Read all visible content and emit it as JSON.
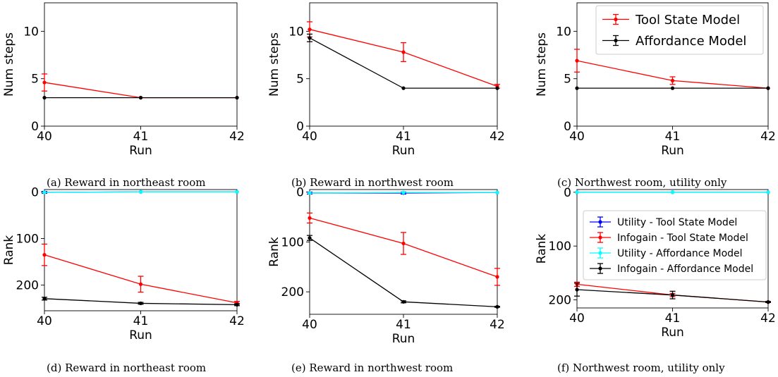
{
  "captions": [
    "(a) Reward in northeast room",
    "(b) Reward in northwest room",
    "(c) Northwest room, utility only",
    "(d) Reward in northeast room",
    "(e) Reward in northwest room",
    "(f) Northwest room, utility only"
  ],
  "colors": {
    "tool_state": "#ff0000",
    "affordance": "#000000",
    "utility_tool_state": "#0000ff",
    "utility_affordance": "#00ffff"
  },
  "chart_data": [
    {
      "type": "line",
      "title": "",
      "xlabel": "Run",
      "ylabel": "Num steps",
      "x": [
        40,
        41,
        42
      ],
      "xlim": [
        40,
        42
      ],
      "ylim": [
        0,
        13
      ],
      "yticks": [
        0,
        5,
        10
      ],
      "series": [
        {
          "color": "#ff0000",
          "values": [
            4.6,
            3.0,
            3.0
          ],
          "errors": [
            0.9,
            0,
            0
          ]
        },
        {
          "color": "#000000",
          "values": [
            3.0,
            3.0,
            3.0
          ],
          "errors": [
            0,
            0,
            0
          ]
        }
      ]
    },
    {
      "type": "line",
      "title": "",
      "xlabel": "Run",
      "ylabel": "Num steps",
      "x": [
        40,
        41,
        42
      ],
      "xlim": [
        40,
        42
      ],
      "ylim": [
        0,
        13
      ],
      "yticks": [
        0,
        5,
        10
      ],
      "series": [
        {
          "color": "#ff0000",
          "values": [
            10.2,
            7.8,
            4.2
          ],
          "errors": [
            0.8,
            1.0,
            0.2
          ]
        },
        {
          "color": "#000000",
          "values": [
            9.3,
            4.0,
            4.0
          ],
          "errors": [
            0.4,
            0,
            0
          ]
        }
      ]
    },
    {
      "type": "line",
      "title": "",
      "xlabel": "Run",
      "ylabel": "Num steps",
      "x": [
        40,
        41,
        42
      ],
      "xlim": [
        40,
        42
      ],
      "ylim": [
        0,
        13
      ],
      "yticks": [
        0,
        5,
        10
      ],
      "legend": "top-right",
      "series": [
        {
          "name": "Tool State Model",
          "color": "#ff0000",
          "values": [
            6.9,
            4.8,
            4.0
          ],
          "errors": [
            1.2,
            0.4,
            0
          ]
        },
        {
          "name": "Affordance Model",
          "color": "#000000",
          "values": [
            4.0,
            4.0,
            4.0
          ],
          "errors": [
            0,
            0,
            0
          ]
        }
      ]
    },
    {
      "type": "line",
      "title": "",
      "xlabel": "Run",
      "ylabel": "Rank",
      "x": [
        40,
        41,
        42
      ],
      "xlim": [
        40,
        42
      ],
      "ylim": [
        255,
        -5
      ],
      "yticks": [
        0,
        100,
        200
      ],
      "series": [
        {
          "color": "#0000ff",
          "values": [
            1,
            0,
            0
          ],
          "errors": [
            2,
            0,
            0
          ]
        },
        {
          "color": "#ff0000",
          "values": [
            135,
            198,
            238
          ],
          "errors": [
            23,
            17,
            3
          ]
        },
        {
          "color": "#00ffff",
          "values": [
            1,
            0,
            0
          ],
          "errors": [
            0,
            0,
            0
          ]
        },
        {
          "color": "#000000",
          "values": [
            229,
            239,
            242
          ],
          "errors": [
            3,
            2,
            2
          ]
        }
      ]
    },
    {
      "type": "line",
      "title": "",
      "xlabel": "Run",
      "ylabel": "Rank",
      "x": [
        40,
        41,
        42
      ],
      "xlim": [
        40,
        42
      ],
      "ylim": [
        245,
        -5
      ],
      "yticks": [
        0,
        100,
        200
      ],
      "series": [
        {
          "color": "#0000ff",
          "values": [
            2,
            2,
            1
          ],
          "errors": [
            2,
            2,
            0
          ]
        },
        {
          "color": "#ff0000",
          "values": [
            52,
            103,
            170
          ],
          "errors": [
            10,
            22,
            17
          ]
        },
        {
          "color": "#00ffff",
          "values": [
            2,
            1,
            1
          ],
          "errors": [
            0,
            0,
            0
          ]
        },
        {
          "color": "#000000",
          "values": [
            92,
            220,
            230
          ],
          "errors": [
            5,
            2,
            1
          ]
        }
      ]
    },
    {
      "type": "line",
      "title": "",
      "xlabel": "Run",
      "ylabel": "Rank",
      "x": [
        40,
        41,
        42
      ],
      "xlim": [
        40,
        42
      ],
      "ylim": [
        215,
        -5
      ],
      "yticks": [
        0,
        100,
        200
      ],
      "legend": "center-right",
      "series": [
        {
          "name": "Utility - Tool State Model",
          "color": "#0000ff",
          "values": [
            0,
            0,
            0
          ],
          "errors": [
            0,
            0,
            0
          ]
        },
        {
          "name": "Infogain - Tool State Model",
          "color": "#ff0000",
          "values": [
            171,
            191,
            204
          ],
          "errors": [
            4,
            3,
            1
          ]
        },
        {
          "name": "Utility - Affordance Model",
          "color": "#00ffff",
          "values": [
            0,
            0,
            0
          ],
          "errors": [
            0,
            0,
            0
          ]
        },
        {
          "name": "Infogain - Affordance Model",
          "color": "#000000",
          "values": [
            181,
            191,
            204
          ],
          "errors": [
            12,
            7,
            1
          ]
        }
      ]
    }
  ]
}
